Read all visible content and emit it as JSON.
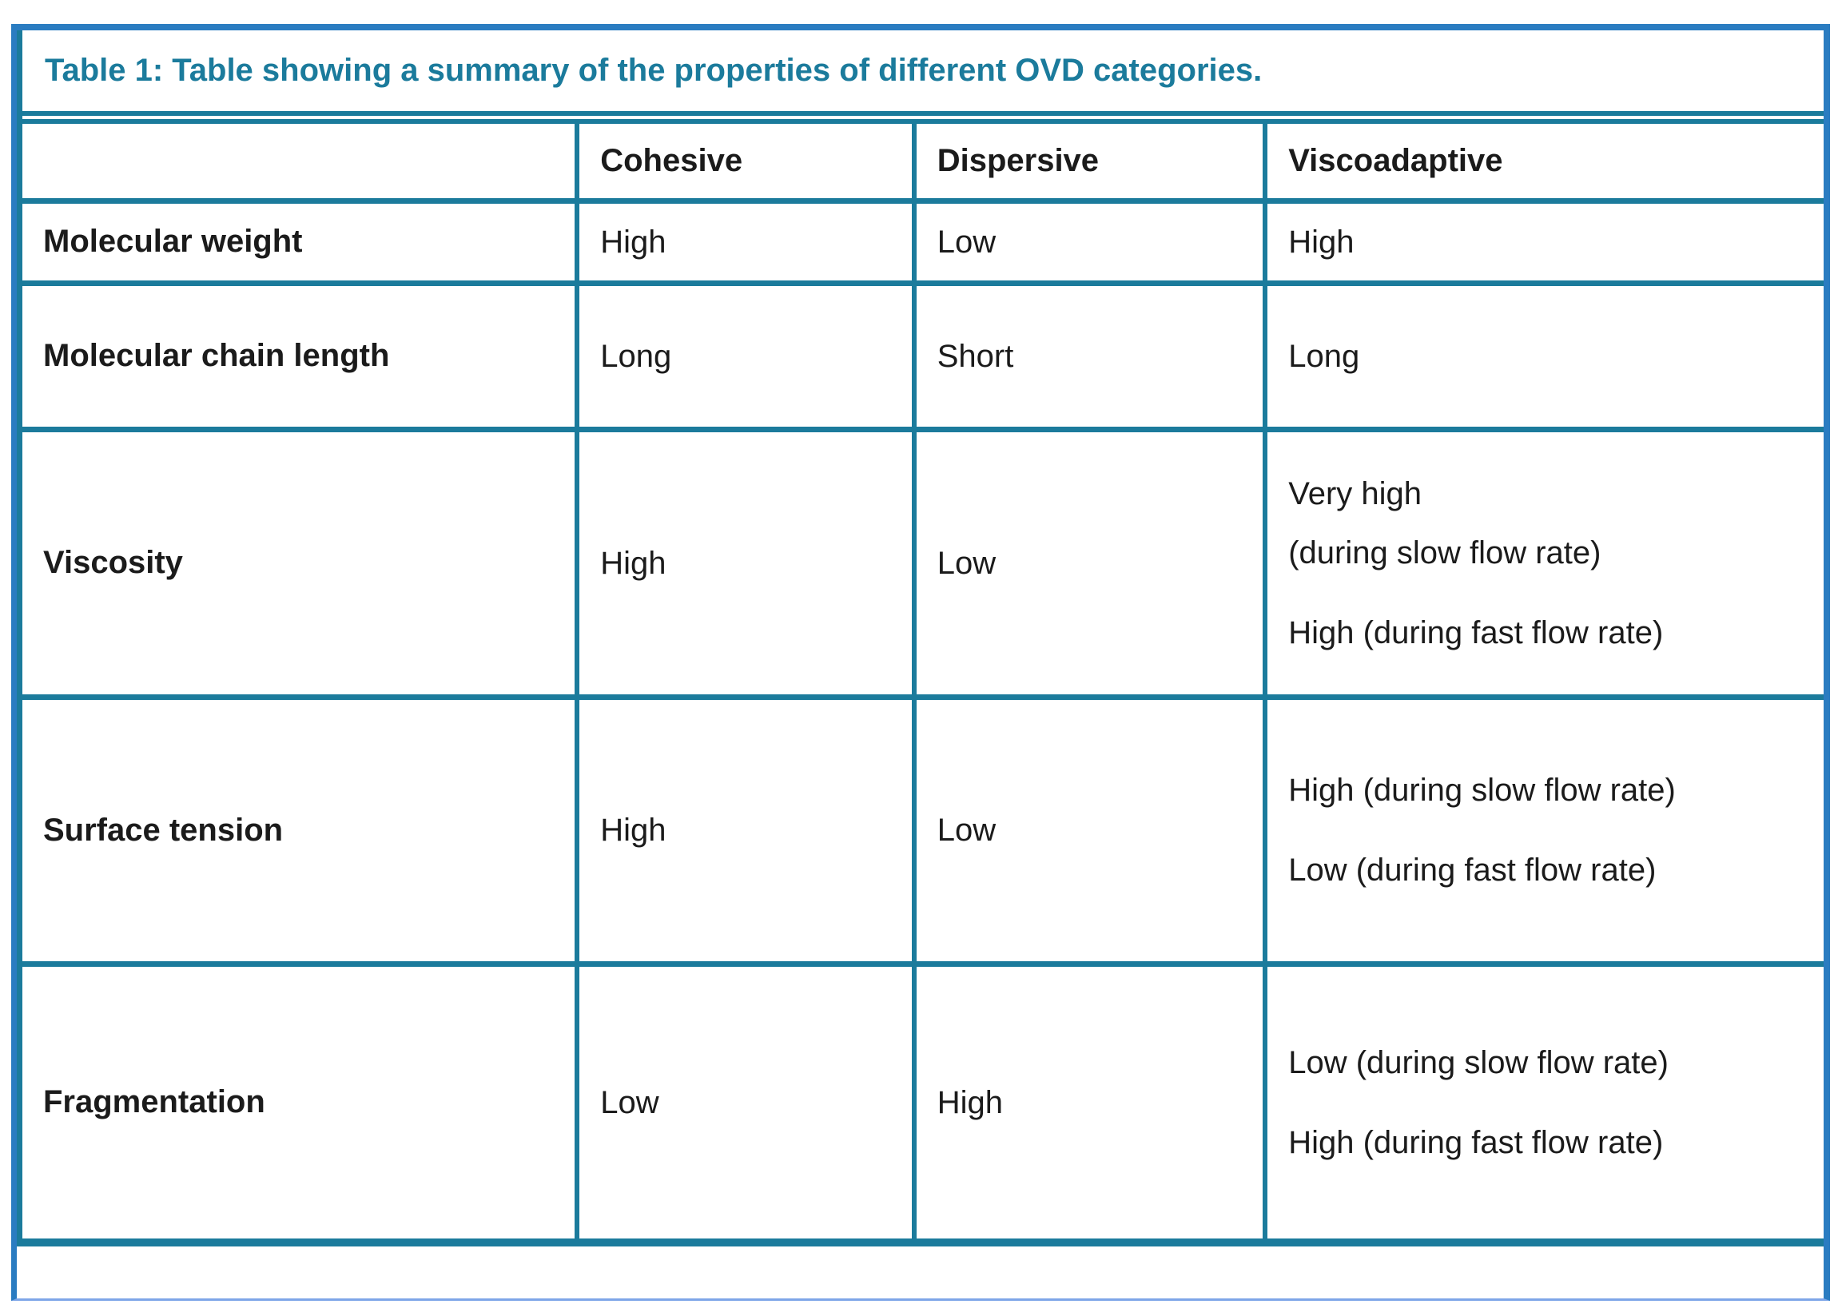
{
  "table": {
    "title": "Table 1: Table showing a summary of the properties of different OVD categories.",
    "columns": [
      "",
      "Cohesive",
      "Dispersive",
      "Viscoadaptive"
    ],
    "rows": [
      {
        "label": "Molecular weight",
        "cells": [
          [
            [
              "High"
            ]
          ],
          [
            [
              "Low"
            ]
          ],
          [
            [
              "High"
            ]
          ]
        ]
      },
      {
        "label": "Molecular chain length",
        "cells": [
          [
            [
              "Long"
            ]
          ],
          [
            [
              "Short"
            ]
          ],
          [
            [
              "Long"
            ]
          ]
        ]
      },
      {
        "label": "Viscosity",
        "cells": [
          [
            [
              "High"
            ]
          ],
          [
            [
              "Low"
            ]
          ],
          [
            [
              "Very high",
              "(during slow flow rate)"
            ],
            [
              "High (during fast flow rate)"
            ]
          ]
        ]
      },
      {
        "label": "Surface tension",
        "cells": [
          [
            [
              "High"
            ]
          ],
          [
            [
              "Low"
            ]
          ],
          [
            [
              "High (during slow flow rate)"
            ],
            [
              "Low (during fast flow rate)"
            ]
          ]
        ]
      },
      {
        "label": "Fragmentation",
        "cells": [
          [
            [
              "Low"
            ]
          ],
          [
            [
              "High"
            ]
          ],
          [
            [
              "Low (during slow flow rate)"
            ],
            [
              "High (during fast flow rate)"
            ]
          ]
        ]
      }
    ]
  },
  "colors": {
    "frame_blue": "#2a7cc1",
    "bottom_blue": "#7ea6e8",
    "border_teal": "#1b7b9c",
    "text": "#1b1b1b"
  }
}
